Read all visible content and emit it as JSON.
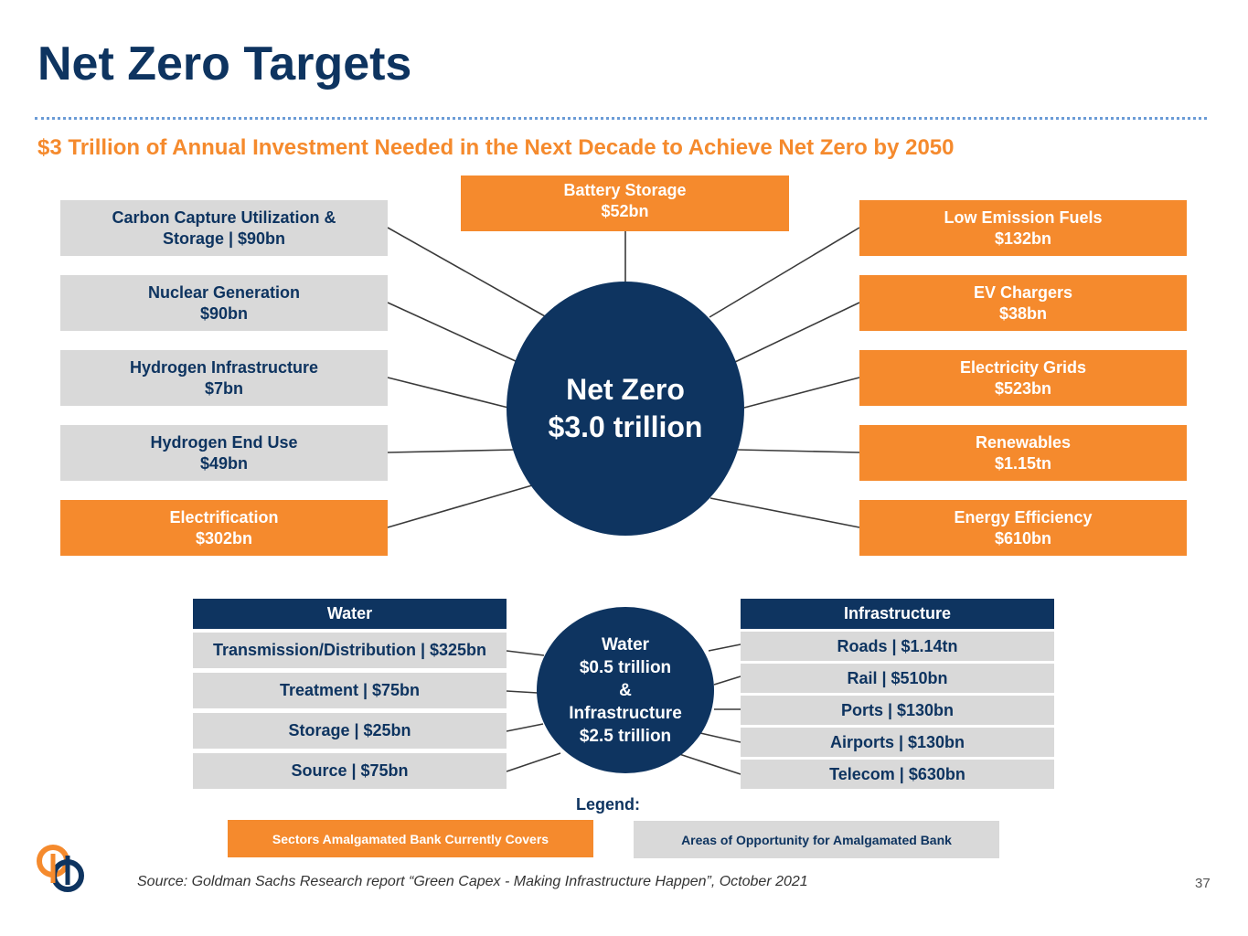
{
  "title": "Net Zero Targets",
  "subtitle": "$3 Trillion of Annual Investment Needed in the Next Decade to Achieve Net Zero by 2050",
  "center": {
    "line1": "Net Zero",
    "line2": "$3.0 trillion"
  },
  "top_box": {
    "line1": "Battery Storage",
    "line2": "$52bn"
  },
  "left_boxes": [
    {
      "line1": "Carbon Capture Utilization &",
      "line2": "Storage | $90bn",
      "style": "gray"
    },
    {
      "line1": "Nuclear Generation",
      "line2": "$90bn",
      "style": "gray"
    },
    {
      "line1": "Hydrogen Infrastructure",
      "line2": "$7bn",
      "style": "gray"
    },
    {
      "line1": "Hydrogen End Use",
      "line2": "$49bn",
      "style": "gray"
    },
    {
      "line1": "Electrification",
      "line2": "$302bn",
      "style": "orange"
    }
  ],
  "right_boxes": [
    {
      "line1": "Low Emission Fuels",
      "line2": "$132bn",
      "style": "orange"
    },
    {
      "line1": "EV Chargers",
      "line2": "$38bn",
      "style": "orange"
    },
    {
      "line1": "Electricity Grids",
      "line2": "$523bn",
      "style": "orange"
    },
    {
      "line1": "Renewables",
      "line2": "$1.15tn",
      "style": "orange"
    },
    {
      "line1": "Energy Efficiency",
      "line2": "$610bn",
      "style": "orange"
    }
  ],
  "water": {
    "header": "Water",
    "items": [
      "Transmission/Distribution | $325bn",
      "Treatment | $75bn",
      "Storage | $25bn",
      "Source | $75bn"
    ]
  },
  "infrastructure": {
    "header": "Infrastructure",
    "items": [
      "Roads | $1.14tn",
      "Rail | $510bn",
      "Ports | $130bn",
      "Airports | $130bn",
      "Telecom | $630bn"
    ]
  },
  "small_center": {
    "line1": "Water",
    "line2": "$0.5 trillion",
    "line3": "&",
    "line4": "Infrastructure",
    "line5": "$2.5 trillion"
  },
  "legend": {
    "label": "Legend:",
    "covered": "Sectors Amalgamated Bank Currently Covers",
    "opportunity": "Areas of Opportunity for Amalgamated Bank"
  },
  "source": "Source:  Goldman Sachs Research report “Green Capex - Making Infrastructure Happen”, October 2021",
  "page_number": "37",
  "colors": {
    "navy": "#0e3460",
    "orange": "#f58a2d",
    "gray": "#d9d9d9"
  }
}
